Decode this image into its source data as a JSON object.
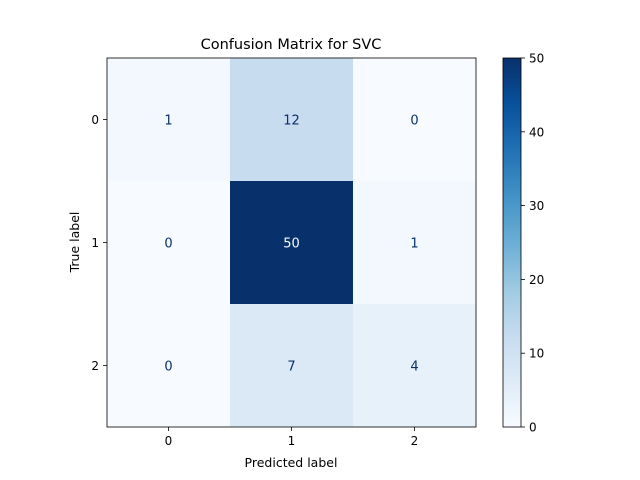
{
  "chart_data": {
    "type": "heatmap",
    "title": "Confusion Matrix for SVC",
    "xlabel": "Predicted label",
    "ylabel": "True label",
    "x_categories": [
      "0",
      "1",
      "2"
    ],
    "y_categories": [
      "0",
      "1",
      "2"
    ],
    "matrix": [
      [
        1,
        12,
        0
      ],
      [
        0,
        50,
        1
      ],
      [
        0,
        7,
        4
      ]
    ],
    "colormap": "Blues",
    "colorbar": {
      "range": [
        0,
        50
      ],
      "ticks": [
        0,
        10,
        20,
        30,
        40,
        50
      ]
    },
    "grid": false
  }
}
